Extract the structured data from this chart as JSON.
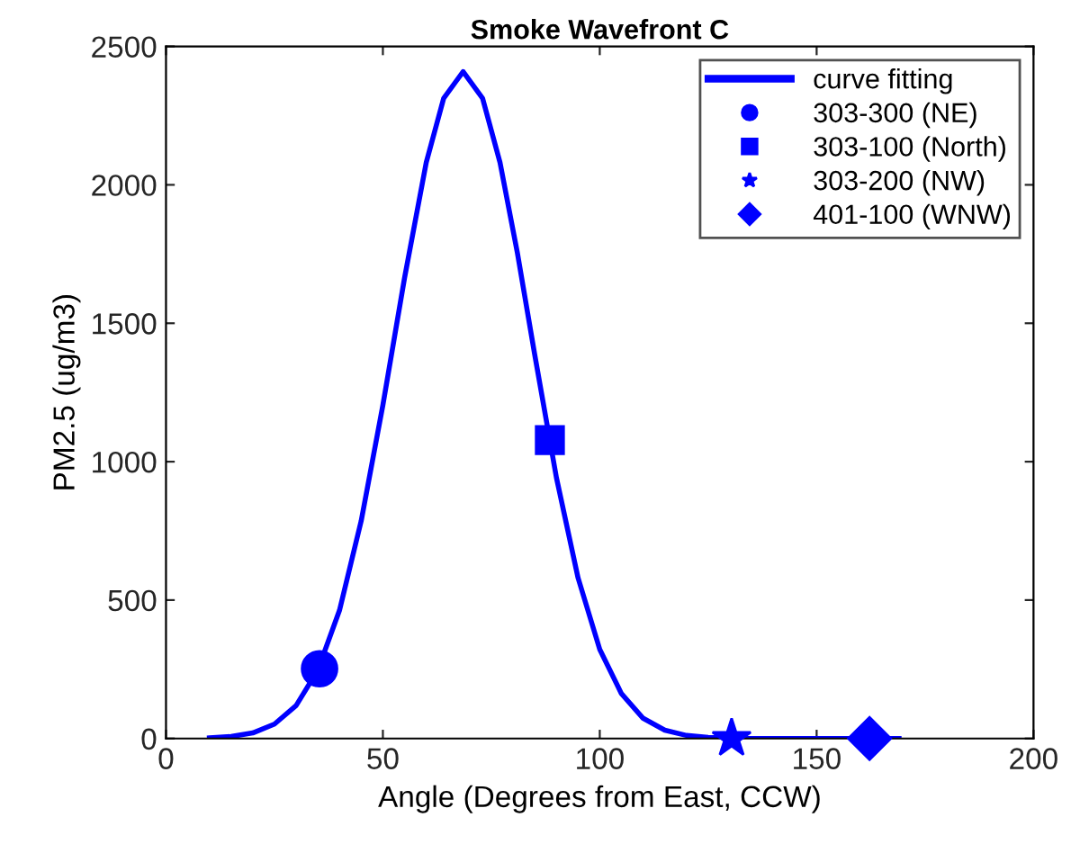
{
  "chart_data": {
    "type": "line",
    "title": "Smoke Wavefront C",
    "xlabel": "Angle (Degrees from East, CCW)",
    "ylabel": "PM2.5 (ug/m3)",
    "xlim": [
      0,
      200
    ],
    "ylim": [
      0,
      2500
    ],
    "xticks": [
      0,
      50,
      100,
      150,
      200
    ],
    "yticks": [
      0,
      500,
      1000,
      1500,
      2000,
      2500
    ],
    "grid": false,
    "legend": "top right",
    "series": [
      {
        "name": "curve fitting",
        "color": "#0000ff",
        "marker": "none",
        "line_style": "solid",
        "x": [
          10,
          15,
          20,
          25,
          30,
          35,
          40,
          45,
          50,
          55,
          60,
          64,
          68.5,
          73,
          77,
          81,
          85,
          90,
          95,
          100,
          105,
          110,
          115,
          120,
          125,
          130,
          140,
          150,
          160,
          169
        ],
        "values": [
          2,
          7,
          20,
          52,
          119,
          247,
          463,
          786,
          1204,
          1664,
          2081,
          2312,
          2409,
          2312,
          2081,
          1755,
          1387,
          943,
          580,
          322,
          162,
          73,
          30,
          11,
          4,
          1,
          0,
          0,
          0,
          0
        ]
      },
      {
        "name": "303-300 (NE)",
        "type": "scatter",
        "color": "#0000ff",
        "marker": "circle",
        "x": [
          35.4
        ],
        "values": [
          252
        ]
      },
      {
        "name": "303-100 (North)",
        "type": "scatter",
        "color": "#0000ff",
        "marker": "square",
        "x": [
          88.5
        ],
        "values": [
          1078
        ]
      },
      {
        "name": "303-200 (NW)",
        "type": "scatter",
        "color": "#0000ff",
        "marker": "star",
        "x": [
          130.4
        ],
        "values": [
          0
        ]
      },
      {
        "name": "401-100 (WNW)",
        "type": "scatter",
        "color": "#0000ff",
        "marker": "diamond",
        "x": [
          162.2
        ],
        "values": [
          0
        ]
      }
    ]
  }
}
